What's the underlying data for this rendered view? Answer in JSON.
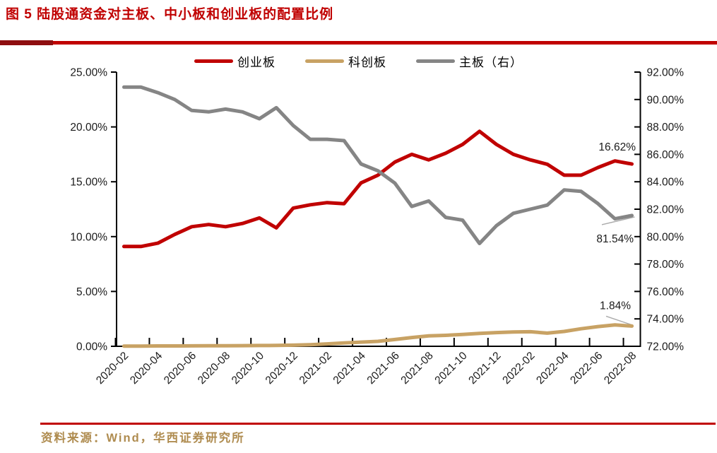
{
  "figure": {
    "title": "图 5  陆股通资金对主板、中小板和创业板的配置比例",
    "source_note": "资料来源：Wind，华西证券研究所"
  },
  "colors": {
    "title_red": "#C00000",
    "divider_dark_red": "#8E0E10",
    "divider_red": "#C00000",
    "source_gold": "#AF8C50",
    "chinext_red": "#C00000",
    "star_tan": "#C8A264",
    "mainboard_gray": "#858585",
    "axis_black": "#000000",
    "label_black": "#1A1A1A",
    "leader_gray": "#ABABAB"
  },
  "legend": [
    {
      "label": "创业板",
      "color_key": "chinext_red"
    },
    {
      "label": "科创板",
      "color_key": "star_tan"
    },
    {
      "label": "主板（右）",
      "color_key": "mainboard_gray"
    }
  ],
  "chart_data": {
    "type": "line",
    "title": "陆股通资金对主板、中小板和创业板的配置比例",
    "x": [
      "2020-02",
      "2020-03",
      "2020-04",
      "2020-05",
      "2020-06",
      "2020-07",
      "2020-08",
      "2020-09",
      "2020-10",
      "2020-11",
      "2020-12",
      "2021-01",
      "2021-02",
      "2021-03",
      "2021-04",
      "2021-05",
      "2021-06",
      "2021-07",
      "2021-08",
      "2021-09",
      "2021-10",
      "2021-11",
      "2021-12",
      "2022-01",
      "2022-02",
      "2022-03",
      "2022-04",
      "2022-05",
      "2022-06",
      "2022-07",
      "2022-08"
    ],
    "x_tick_labels": [
      "2020-02",
      "2020-04",
      "2020-06",
      "2020-08",
      "2020-10",
      "2020-12",
      "2021-02",
      "2021-04",
      "2021-06",
      "2021-08",
      "2021-10",
      "2021-12",
      "2022-02",
      "2022-04",
      "2022-06",
      "2022-08"
    ],
    "left_axis": {
      "min": 0,
      "max": 25,
      "step": 5,
      "tick_labels": [
        "25.00%",
        "20.00%",
        "15.00%",
        "10.00%",
        "5.00%",
        "0.00%"
      ]
    },
    "right_axis": {
      "min": 72,
      "max": 92,
      "step": 2,
      "tick_labels": [
        "92.00%",
        "90.00%",
        "88.00%",
        "86.00%",
        "84.00%",
        "82.00%",
        "80.00%",
        "78.00%",
        "76.00%",
        "74.00%",
        "72.00%"
      ]
    },
    "series": [
      {
        "name": "创业板",
        "axis": "left",
        "color_key": "chinext_red",
        "values": [
          9.1,
          9.1,
          9.4,
          10.2,
          10.9,
          11.1,
          10.9,
          11.2,
          11.7,
          10.8,
          12.6,
          12.9,
          13.1,
          13.0,
          14.9,
          15.6,
          16.8,
          17.5,
          17.0,
          17.6,
          18.4,
          19.6,
          18.4,
          17.5,
          17.0,
          16.6,
          15.6,
          15.6,
          16.3,
          16.9,
          16.62
        ]
      },
      {
        "name": "科创板",
        "axis": "left",
        "color_key": "star_tan",
        "values": [
          0.02,
          0.02,
          0.03,
          0.03,
          0.04,
          0.05,
          0.05,
          0.06,
          0.07,
          0.08,
          0.1,
          0.15,
          0.22,
          0.3,
          0.38,
          0.45,
          0.62,
          0.8,
          0.95,
          1.0,
          1.08,
          1.18,
          1.25,
          1.3,
          1.33,
          1.2,
          1.35,
          1.6,
          1.8,
          1.95,
          1.84
        ]
      },
      {
        "name": "主板（右）",
        "axis": "right",
        "color_key": "mainboard_gray",
        "values": [
          90.9,
          90.9,
          90.5,
          90.0,
          89.2,
          89.1,
          89.3,
          89.1,
          88.6,
          89.4,
          88.1,
          87.1,
          87.1,
          87.0,
          85.3,
          84.8,
          83.9,
          82.2,
          82.6,
          81.4,
          81.2,
          79.5,
          80.8,
          81.7,
          82.0,
          82.3,
          83.4,
          83.3,
          82.4,
          81.3,
          81.54
        ]
      }
    ],
    "end_labels": {
      "chinext": "16.62%",
      "mainboard": "81.54%",
      "star": "1.84%"
    },
    "legend_position": "top",
    "grid": false
  }
}
